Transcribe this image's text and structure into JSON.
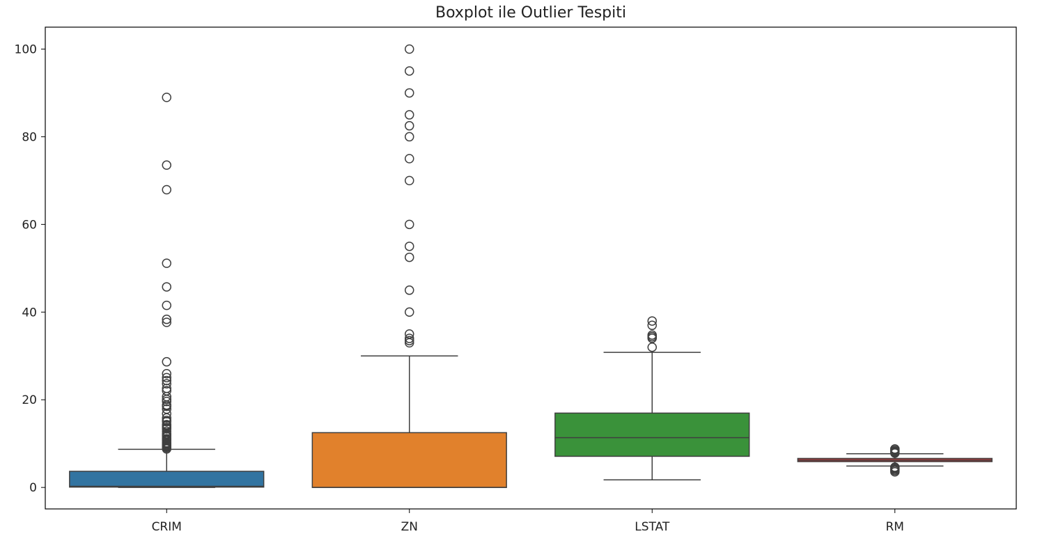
{
  "chart_data": {
    "type": "boxplot",
    "title": "Boxplot ile Outlier Tespiti",
    "xlabel": "",
    "ylabel": "",
    "ylim": [
      -4.9,
      105
    ],
    "y_ticks": [
      0,
      20,
      40,
      60,
      80,
      100
    ],
    "grid": false,
    "legend": "none",
    "categories": [
      "CRIM",
      "ZN",
      "LSTAT",
      "RM"
    ],
    "boxes": [
      {
        "name": "CRIM",
        "color": "#3274a1",
        "whisker_low": 0.0,
        "q1": 0.08,
        "median": 0.26,
        "q3": 3.68,
        "whisker_high": 8.7,
        "outliers": [
          88.98,
          73.53,
          67.92,
          51.14,
          45.75,
          41.53,
          38.35,
          37.66,
          28.66,
          25.95,
          25.05,
          24.39,
          23.65,
          22.6,
          22.05,
          20.72,
          20.08,
          19.61,
          18.81,
          18.5,
          17.87,
          16.81,
          15.86,
          15.29,
          15.02,
          14.33,
          14.24,
          14.05,
          13.68,
          13.52,
          13.36,
          12.8,
          12.25,
          12.05,
          11.95,
          11.58,
          11.11,
          11.08,
          10.83,
          10.67,
          10.23,
          10.06,
          9.92,
          9.73,
          9.6,
          9.39,
          9.19,
          9.07,
          8.79
        ]
      },
      {
        "name": "ZN",
        "color": "#e1812c",
        "whisker_low": 0.0,
        "q1": 0.0,
        "median": 0.0,
        "q3": 12.5,
        "whisker_high": 30.0,
        "outliers": [
          100,
          95,
          90,
          85,
          82.5,
          80,
          75,
          70,
          60,
          55,
          52.5,
          45,
          40,
          35,
          34,
          33,
          33.5
        ]
      },
      {
        "name": "LSTAT",
        "color": "#3a923a",
        "whisker_low": 1.73,
        "q1": 7.1,
        "median": 11.36,
        "q3": 16.96,
        "whisker_high": 30.81,
        "outliers": [
          37.97,
          36.98,
          34.77,
          34.41,
          34.37,
          34.02,
          31.99
        ]
      },
      {
        "name": "RM",
        "color": "#c03d3e",
        "whisker_low": 4.88,
        "q1": 5.89,
        "median": 6.21,
        "q3": 6.62,
        "whisker_high": 7.69,
        "outliers": [
          8.78,
          8.72,
          8.7,
          8.4,
          8.38,
          8.3,
          8.25,
          8.1,
          8.04,
          7.92,
          7.82,
          3.56,
          3.86,
          4.14,
          4.37,
          4.52,
          4.63
        ]
      }
    ]
  }
}
